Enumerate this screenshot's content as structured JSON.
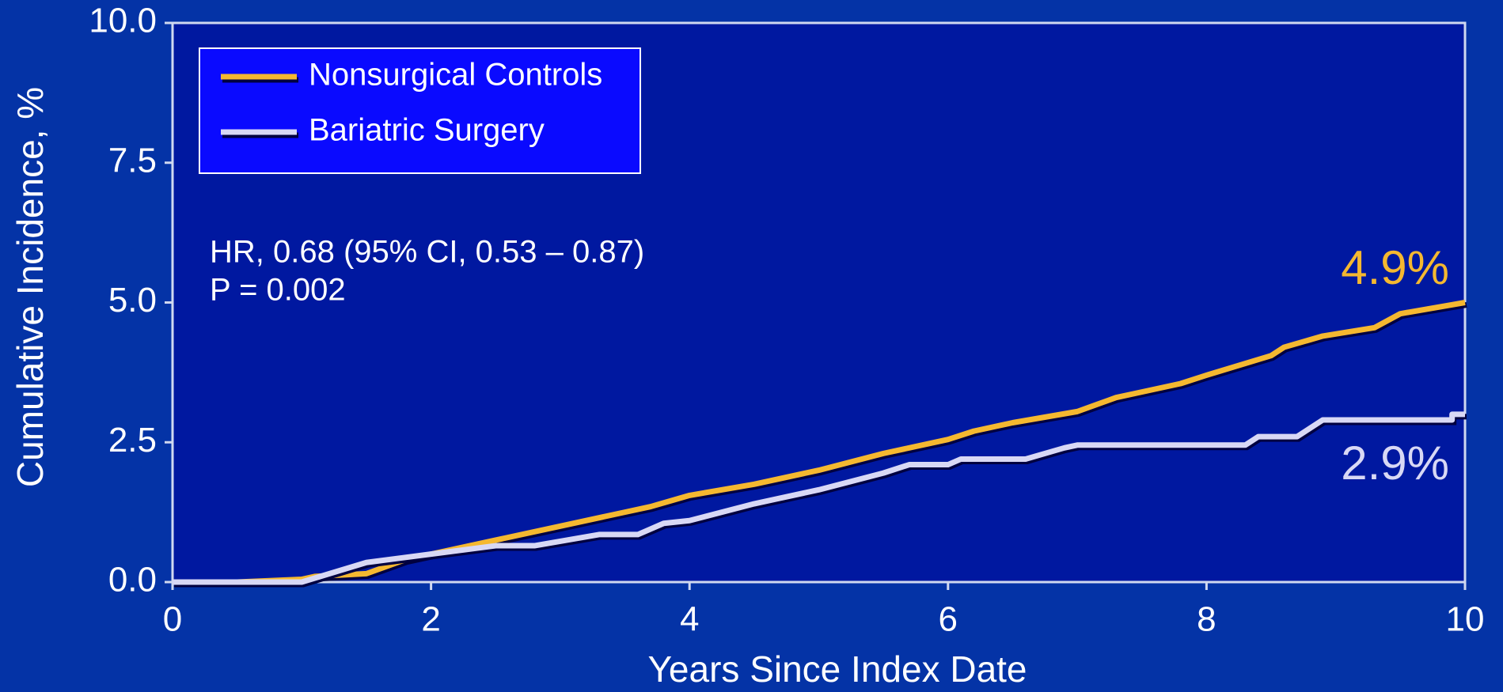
{
  "chart_data": {
    "type": "line",
    "xlabel": "Years Since Index Date",
    "ylabel": "Cumulative Incidence, %",
    "xlim": [
      0,
      10
    ],
    "ylim": [
      0,
      10
    ],
    "xticks": [
      0,
      2,
      4,
      6,
      8,
      10
    ],
    "yticks": [
      {
        "value": 0,
        "label": "0.0"
      },
      {
        "value": 2.5,
        "label": "2.5"
      },
      {
        "value": 5,
        "label": "5.0"
      },
      {
        "value": 7.5,
        "label": "7.5"
      },
      {
        "value": 10,
        "label": "10.0"
      }
    ],
    "legend": "upper left",
    "annotations": [
      "HR, 0.68 (95% CI, 0.53 – 0.87)",
      "P = 0.002"
    ],
    "series": [
      {
        "name": "Nonsurgical Controls",
        "color": "#f5b830",
        "end_label": "4.9%",
        "x": [
          0,
          0.5,
          1.0,
          1.1,
          1.5,
          1.8,
          2,
          2.5,
          3,
          3.5,
          3.7,
          4,
          4.5,
          5,
          5.5,
          6,
          6.2,
          6.5,
          7,
          7.3,
          7.5,
          7.8,
          8,
          8.5,
          8.6,
          8.9,
          9.3,
          9.5,
          10
        ],
        "values": [
          0,
          0,
          0.05,
          0.1,
          0.15,
          0.4,
          0.5,
          0.75,
          1.0,
          1.25,
          1.35,
          1.55,
          1.75,
          2.0,
          2.3,
          2.55,
          2.7,
          2.85,
          3.05,
          3.3,
          3.4,
          3.55,
          3.7,
          4.05,
          4.2,
          4.4,
          4.55,
          4.8,
          5.0
        ]
      },
      {
        "name": "Bariatric Surgery",
        "color": "#d8d8f5",
        "end_label": "2.9%",
        "x": [
          0,
          1,
          1.5,
          2,
          2.5,
          2.8,
          3.3,
          3.6,
          3.8,
          4,
          4.5,
          5,
          5.5,
          5.7,
          6,
          6.1,
          6.6,
          6.9,
          7,
          8.3,
          8.4,
          8.7,
          8.9,
          9.9,
          9.9,
          10
        ],
        "values": [
          0,
          0,
          0.35,
          0.5,
          0.65,
          0.65,
          0.85,
          0.85,
          1.05,
          1.1,
          1.4,
          1.65,
          1.95,
          2.1,
          2.1,
          2.2,
          2.2,
          2.4,
          2.45,
          2.45,
          2.6,
          2.6,
          2.9,
          2.9,
          3.0,
          3.0
        ]
      }
    ]
  }
}
